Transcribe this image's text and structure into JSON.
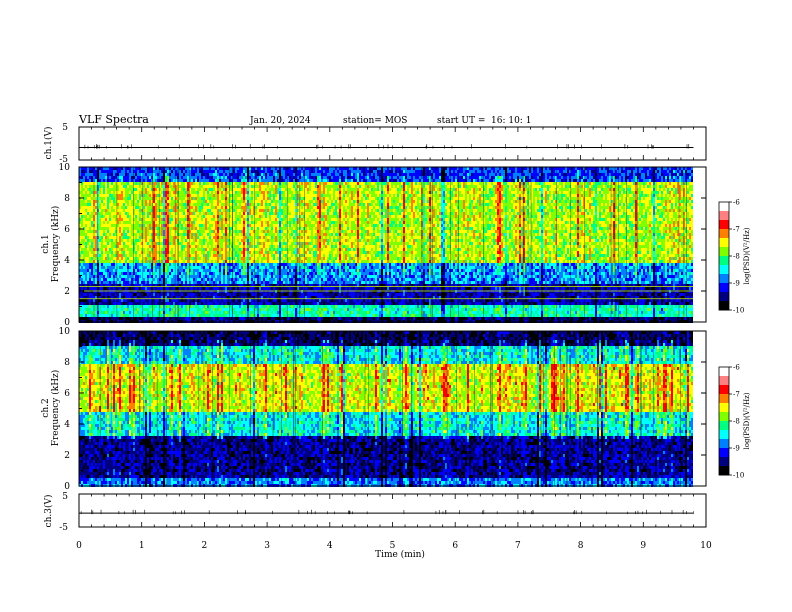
{
  "header": {
    "title": "VLF Spectra",
    "date": "Jan. 20, 2024",
    "station": "station= MOS",
    "start_label": "start UT =",
    "start_time": "16: 10: 1"
  },
  "chart_data": {
    "type": "heatmap",
    "colors": [
      "#000000",
      "#00007f",
      "#0000ff",
      "#0080ff",
      "#00ffff",
      "#00ff80",
      "#80ff00",
      "#ffff00",
      "#ff8000",
      "#ff0000",
      "#ffffff"
    ],
    "xlabel": "Time (min)",
    "x_range": [
      0,
      10
    ],
    "x_ticks": [
      "0",
      "1",
      "2",
      "3",
      "4",
      "5",
      "6",
      "7",
      "8",
      "9",
      "10"
    ],
    "data_end_min": 9.8,
    "panels": [
      {
        "id": "ch1_voltage",
        "ylabel": "ch.1(V)",
        "y_range": [
          -5,
          5
        ],
        "y_ticks": [
          "5",
          "-5"
        ],
        "trace_level_v": -1.2
      },
      {
        "id": "ch1_spectrogram",
        "ylabel_line1": "ch.1",
        "ylabel_line2": "Frequency (kHz)",
        "y_range_khz": [
          0,
          10
        ],
        "y_ticks": [
          "0",
          "2",
          "4",
          "6",
          "8",
          "10"
        ],
        "colorbar_label": "log(PSD)(V²/Hz)",
        "colorbar_range": [
          -10,
          -6
        ],
        "colorbar_ticks": [
          "-6",
          "-7",
          "-8",
          "-9",
          "-10"
        ],
        "bands": [
          {
            "from_khz": 0.0,
            "to_khz": 0.3,
            "log_psd": -9.6
          },
          {
            "from_khz": 0.3,
            "to_khz": 1.1,
            "log_psd": -8.0
          },
          {
            "from_khz": 1.1,
            "to_khz": 2.5,
            "log_psd": -9.3
          },
          {
            "from_khz": 2.5,
            "to_khz": 3.8,
            "log_psd": -8.6
          },
          {
            "from_khz": 3.8,
            "to_khz": 9.0,
            "log_psd": -7.3
          },
          {
            "from_khz": 9.0,
            "to_khz": 10.0,
            "log_psd": -8.9
          }
        ],
        "horizontal_lines_khz": [
          1.5,
          2.0,
          2.3
        ]
      },
      {
        "id": "ch2_spectrogram",
        "ylabel_line1": "ch.2",
        "ylabel_line2": "Frequency (kHz)",
        "y_range_khz": [
          0,
          10
        ],
        "y_ticks": [
          "0",
          "2",
          "4",
          "6",
          "8",
          "10"
        ],
        "colorbar_label": "log(PSD)(V²/Hz)",
        "colorbar_range": [
          -10,
          -6
        ],
        "colorbar_ticks": [
          "-6",
          "-7",
          "-8",
          "-9",
          "-10"
        ],
        "bands": [
          {
            "from_khz": 0.0,
            "to_khz": 0.5,
            "log_psd": -8.7
          },
          {
            "from_khz": 0.5,
            "to_khz": 3.2,
            "log_psd": -9.4
          },
          {
            "from_khz": 3.2,
            "to_khz": 4.8,
            "log_psd": -8.3
          },
          {
            "from_khz": 4.8,
            "to_khz": 7.8,
            "log_psd": -7.2
          },
          {
            "from_khz": 7.8,
            "to_khz": 9.0,
            "log_psd": -8.3
          },
          {
            "from_khz": 9.0,
            "to_khz": 10.0,
            "log_psd": -9.6
          }
        ],
        "horizontal_lines_khz": []
      },
      {
        "id": "ch3_voltage",
        "ylabel": "ch.3(V)",
        "y_range": [
          -5,
          5
        ],
        "y_ticks": [
          "5",
          "-5"
        ],
        "trace_level_v": -0.8
      }
    ]
  }
}
